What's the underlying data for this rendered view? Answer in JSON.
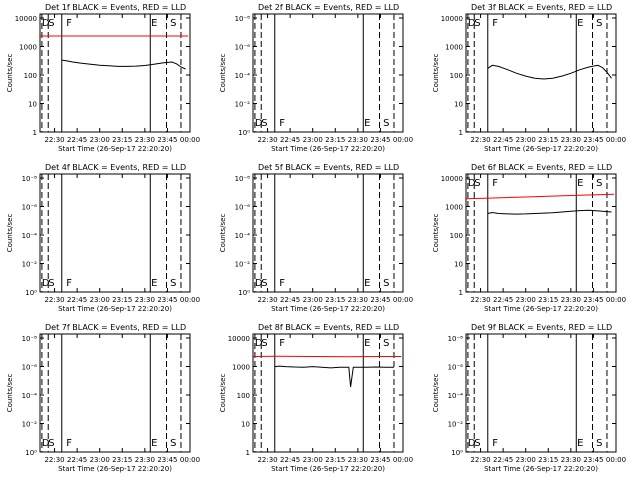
{
  "colors": {
    "events": "#000000",
    "lld": "#ff0000",
    "background": "#ffffff"
  },
  "x_tick_labels": [
    "22:30",
    "22:45",
    "23:00",
    "23:15",
    "23:30",
    "23:45",
    "00:00"
  ],
  "x_label": "Start Time (26-Sep-17 22:20:20)",
  "y_label": "Counts/sec",
  "chart_data": [
    {
      "type": "line",
      "title": "Det 1f BLACK = Events, RED = LLD",
      "log_y": true,
      "ylim": [
        1,
        15000
      ],
      "y_ticks": [
        "1",
        "10",
        "100",
        "1000",
        "10000"
      ],
      "marker_letters": [
        "D",
        "S",
        "F",
        "E",
        "S"
      ],
      "events": [
        [
          22.58,
          350
        ],
        [
          22.63,
          330
        ],
        [
          22.7,
          300
        ],
        [
          22.8,
          270
        ],
        [
          22.9,
          250
        ],
        [
          23.0,
          230
        ],
        [
          23.1,
          220
        ],
        [
          23.2,
          210
        ],
        [
          23.3,
          210
        ],
        [
          23.4,
          215
        ],
        [
          23.5,
          225
        ],
        [
          23.6,
          250
        ],
        [
          23.7,
          280
        ],
        [
          23.8,
          300
        ],
        [
          23.85,
          260
        ],
        [
          23.9,
          200
        ],
        [
          23.95,
          170
        ]
      ],
      "lld": [
        [
          22.33,
          2500
        ],
        [
          23.98,
          2500
        ]
      ]
    },
    {
      "type": "line",
      "title": "Det 2f BLACK = Events, RED = LLD",
      "log_y": true,
      "ylim": [
        1,
        15000
      ],
      "y_ticks": [
        "10⁰",
        "10⁻²",
        "10⁻⁴",
        "10⁻⁶",
        "10⁻⁸"
      ],
      "marker_letters": [
        "D",
        "S",
        "F",
        "E",
        "S"
      ],
      "events": [],
      "lld": []
    },
    {
      "type": "line",
      "title": "Det 3f BLACK = Events, RED = LLD",
      "log_y": true,
      "ylim": [
        1,
        15000
      ],
      "y_ticks": [
        "1",
        "10",
        "100",
        "1000",
        "10000"
      ],
      "marker_letters": [
        "D",
        "S",
        "F",
        "E",
        "S"
      ],
      "events": [
        [
          22.58,
          180
        ],
        [
          22.63,
          230
        ],
        [
          22.7,
          210
        ],
        [
          22.8,
          160
        ],
        [
          22.9,
          120
        ],
        [
          23.0,
          95
        ],
        [
          23.1,
          80
        ],
        [
          23.2,
          75
        ],
        [
          23.3,
          80
        ],
        [
          23.4,
          95
        ],
        [
          23.5,
          120
        ],
        [
          23.6,
          160
        ],
        [
          23.7,
          200
        ],
        [
          23.8,
          230
        ],
        [
          23.85,
          190
        ],
        [
          23.9,
          130
        ],
        [
          23.95,
          80
        ]
      ],
      "lld": []
    },
    {
      "type": "line",
      "title": "Det 4f BLACK = Events, RED = LLD",
      "log_y": true,
      "ylim": [
        1,
        15000
      ],
      "y_ticks": [
        "10⁰",
        "10⁻²",
        "10⁻⁴",
        "10⁻⁶",
        "10⁻⁸"
      ],
      "marker_letters": [
        "D",
        "S",
        "F",
        "E",
        "S"
      ],
      "events": [],
      "lld": []
    },
    {
      "type": "line",
      "title": "Det 5f BLACK = Events, RED = LLD",
      "log_y": true,
      "ylim": [
        1,
        15000
      ],
      "y_ticks": [
        "10⁰",
        "10⁻²",
        "10⁻⁴",
        "10⁻⁶",
        "10⁻⁸"
      ],
      "marker_letters": [
        "D",
        "S",
        "F",
        "E",
        "S"
      ],
      "events": [],
      "lld": []
    },
    {
      "type": "line",
      "title": "Det 6f BLACK = Events, RED = LLD",
      "log_y": true,
      "ylim": [
        1,
        15000
      ],
      "y_ticks": [
        "1",
        "10",
        "100",
        "1000",
        "10000"
      ],
      "marker_letters": [
        "D",
        "S",
        "F",
        "E",
        "S"
      ],
      "events": [
        [
          22.58,
          600
        ],
        [
          22.63,
          650
        ],
        [
          22.7,
          600
        ],
        [
          22.8,
          580
        ],
        [
          22.9,
          570
        ],
        [
          23.0,
          580
        ],
        [
          23.1,
          600
        ],
        [
          23.2,
          620
        ],
        [
          23.3,
          640
        ],
        [
          23.4,
          680
        ],
        [
          23.5,
          720
        ],
        [
          23.6,
          760
        ],
        [
          23.7,
          780
        ],
        [
          23.8,
          740
        ],
        [
          23.9,
          700
        ],
        [
          23.95,
          680
        ]
      ],
      "lld": [
        [
          22.33,
          2000
        ],
        [
          22.6,
          2100
        ],
        [
          23.0,
          2300
        ],
        [
          23.5,
          2600
        ],
        [
          23.98,
          2900
        ]
      ]
    },
    {
      "type": "line",
      "title": "Det 7f BLACK = Events, RED = LLD",
      "log_y": true,
      "ylim": [
        1,
        15000
      ],
      "y_ticks": [
        "10⁰",
        "10⁻²",
        "10⁻⁴",
        "10⁻⁶",
        "10⁻⁸"
      ],
      "marker_letters": [
        "D",
        "S",
        "F",
        "E",
        "S"
      ],
      "events": [],
      "lld": []
    },
    {
      "type": "line",
      "title": "Det 8f BLACK = Events, RED = LLD",
      "log_y": true,
      "ylim": [
        1,
        15000
      ],
      "y_ticks": [
        "1",
        "10",
        "100",
        "1000",
        "10000"
      ],
      "marker_letters": [
        "D",
        "S",
        "F",
        "E",
        "S"
      ],
      "events": [
        [
          22.58,
          1050
        ],
        [
          22.63,
          1100
        ],
        [
          22.7,
          1050
        ],
        [
          22.8,
          1020
        ],
        [
          22.9,
          1000
        ],
        [
          23.0,
          1050
        ],
        [
          23.1,
          1000
        ],
        [
          23.2,
          950
        ],
        [
          23.3,
          1000
        ],
        [
          23.4,
          1000
        ],
        [
          23.42,
          200
        ],
        [
          23.45,
          1000
        ],
        [
          23.6,
          1000
        ],
        [
          23.7,
          1020
        ],
        [
          23.8,
          1000
        ],
        [
          23.9,
          1000
        ]
      ],
      "lld": [
        [
          22.33,
          2400
        ],
        [
          22.6,
          2450
        ],
        [
          23.0,
          2400
        ],
        [
          23.4,
          2350
        ],
        [
          23.8,
          2400
        ],
        [
          23.98,
          2400
        ]
      ]
    },
    {
      "type": "line",
      "title": "Det 9f BLACK = Events, RED = LLD",
      "log_y": true,
      "ylim": [
        1,
        15000
      ],
      "y_ticks": [
        "10⁰",
        "10⁻²",
        "10⁻⁴",
        "10⁻⁶",
        "10⁻⁸"
      ],
      "marker_letters": [
        "D",
        "S",
        "F",
        "E",
        "S"
      ],
      "events": [],
      "lld": []
    }
  ]
}
